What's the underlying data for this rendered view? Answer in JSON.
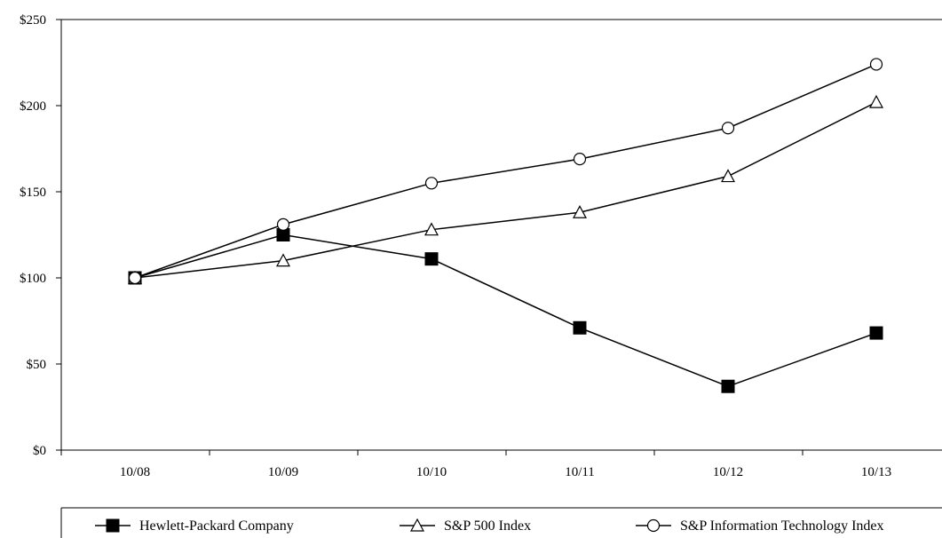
{
  "chart_data": {
    "type": "line",
    "title": "",
    "xlabel": "",
    "ylabel": "",
    "categories": [
      "10/08",
      "10/09",
      "10/10",
      "10/11",
      "10/12",
      "10/13"
    ],
    "ylim": [
      0,
      250
    ],
    "yticks": [
      0,
      50,
      100,
      150,
      200,
      250
    ],
    "ytick_labels": [
      "$0",
      "$50",
      "$100",
      "$150",
      "$200",
      "$250"
    ],
    "grid": false,
    "legend_position": "bottom",
    "series": [
      {
        "name": "Hewlett-Packard Company",
        "marker": "filled-square",
        "color": "#000000",
        "values": [
          100,
          125,
          111,
          71,
          37,
          68
        ]
      },
      {
        "name": "S&P 500 Index",
        "marker": "open-triangle",
        "color": "#000000",
        "values": [
          100,
          110,
          128,
          138,
          159,
          202
        ]
      },
      {
        "name": "S&P Information Technology Index",
        "marker": "open-circle",
        "color": "#000000",
        "values": [
          100,
          131,
          155,
          169,
          187,
          224
        ]
      }
    ]
  }
}
